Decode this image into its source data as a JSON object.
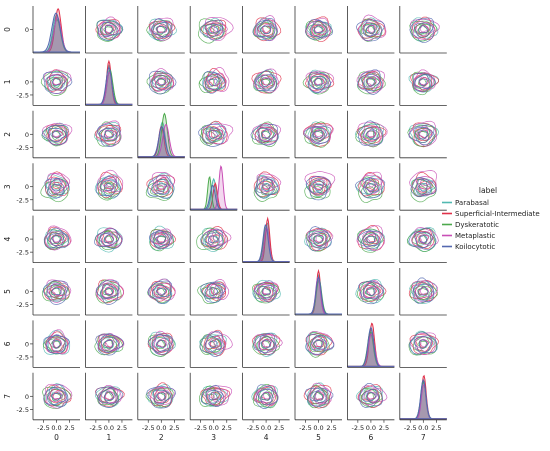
{
  "chart_data": {
    "type": "pairplot",
    "title": "",
    "variables": [
      "0",
      "1",
      "2",
      "3",
      "4",
      "5",
      "6",
      "7"
    ],
    "diag_kind": "kde",
    "offdiag_kind": "kde",
    "hue_variable": "label",
    "tick_values": [
      -2.5,
      0.0,
      2.5
    ],
    "y_tick_labels": [
      "0",
      "-2.5"
    ],
    "x_tick_labels": [
      "-2.5",
      "0.0",
      "2.5"
    ],
    "axis_range": [
      -4.5,
      4.5
    ],
    "legend": {
      "title": "label",
      "placement": "right",
      "items": [
        {
          "name": "Parabasal",
          "color": "#52b9b1"
        },
        {
          "name": "Superficial-Intermediate",
          "color": "#e0314a"
        },
        {
          "name": "Dyskeratotic",
          "color": "#4ca94c"
        },
        {
          "name": "Metaplastic",
          "color": "#c94fb6"
        },
        {
          "name": "Koilocytotic",
          "color": "#5468b0"
        }
      ]
    },
    "diagonal_peaks": [
      {
        "variable": "0",
        "means": [
          0.0,
          0.3,
          0.1,
          0.2,
          -0.1
        ],
        "sd": [
          0.7,
          0.6,
          0.7,
          0.7,
          0.8
        ],
        "relative_heights": [
          0.85,
          1.0,
          0.75,
          0.8,
          0.9
        ]
      },
      {
        "variable": "1",
        "means": [
          0.0,
          0.0,
          0.2,
          0.1,
          0.0
        ],
        "sd": [
          0.5,
          0.45,
          0.55,
          0.5,
          0.55
        ],
        "relative_heights": [
          0.9,
          1.0,
          0.8,
          0.75,
          0.85
        ]
      },
      {
        "variable": "2",
        "means": [
          0.2,
          0.0,
          0.6,
          0.9,
          0.1
        ],
        "sd": [
          0.55,
          0.5,
          0.55,
          0.6,
          0.6
        ],
        "relative_heights": [
          0.8,
          0.7,
          1.0,
          0.75,
          0.7
        ]
      },
      {
        "variable": "3",
        "means": [
          0.0,
          0.3,
          -0.8,
          1.4,
          -0.2
        ],
        "sd": [
          0.45,
          0.4,
          0.35,
          0.4,
          0.5
        ],
        "relative_heights": [
          0.7,
          0.6,
          0.75,
          1.0,
          0.55
        ]
      },
      {
        "variable": "4",
        "means": [
          0.2,
          0.3,
          0.0,
          0.1,
          -0.1
        ],
        "sd": [
          0.45,
          0.4,
          0.5,
          0.45,
          0.5
        ],
        "relative_heights": [
          0.9,
          1.0,
          0.8,
          0.8,
          0.85
        ]
      },
      {
        "variable": "5",
        "means": [
          0.0,
          0.0,
          0.1,
          -0.1,
          0.0
        ],
        "sd": [
          0.45,
          0.4,
          0.5,
          0.45,
          0.5
        ],
        "relative_heights": [
          0.9,
          1.0,
          0.8,
          0.85,
          0.85
        ]
      },
      {
        "variable": "6",
        "means": [
          0.0,
          0.2,
          -0.1,
          0.1,
          0.0
        ],
        "sd": [
          0.55,
          0.5,
          0.55,
          0.6,
          0.55
        ],
        "relative_heights": [
          0.85,
          1.0,
          0.8,
          0.75,
          0.9
        ]
      },
      {
        "variable": "7",
        "means": [
          0.0,
          0.1,
          0.0,
          0.1,
          0.0
        ],
        "sd": [
          0.45,
          0.45,
          0.5,
          0.45,
          0.5
        ],
        "relative_heights": [
          0.9,
          1.0,
          0.85,
          0.8,
          0.9
        ]
      }
    ],
    "offdiag_class_center_shifts": [
      {
        "class": "Parabasal",
        "dx": 0.0,
        "dy": 0.0
      },
      {
        "class": "Superficial-Intermediate",
        "dx": 0.2,
        "dy": 0.2
      },
      {
        "class": "Dyskeratotic",
        "dx": -0.5,
        "dy": -0.5
      },
      {
        "class": "Metaplastic",
        "dx": 0.6,
        "dy": 0.6
      },
      {
        "class": "Koilocytotic",
        "dx": -0.1,
        "dy": -0.1
      }
    ],
    "grid": false
  }
}
